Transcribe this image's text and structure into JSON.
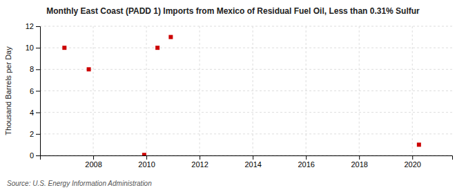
{
  "chart_data": {
    "type": "scatter",
    "title": "Monthly East Coast (PADD 1) Imports from Mexico of Residual Fuel Oil, Less than 0.31% Sulfur",
    "ylabel": "Thousand Barrels per Day",
    "source": "Source: U.S. Energy Information Administration",
    "x": [
      2006.917,
      2007.833,
      2009.917,
      2010.417,
      2010.917,
      2020.25
    ],
    "values": [
      10.0,
      8.0,
      0.05,
      10.0,
      11.0,
      1.0
    ],
    "color": "#cc0000",
    "marker": "square",
    "xlim": [
      2006.0,
      2021.5
    ],
    "ylim": [
      0,
      12
    ],
    "xticks": [
      2008,
      2010,
      2012,
      2014,
      2016,
      2018,
      2020
    ],
    "yticks": [
      0,
      2,
      4,
      6,
      8,
      10,
      12
    ],
    "grid": true
  }
}
